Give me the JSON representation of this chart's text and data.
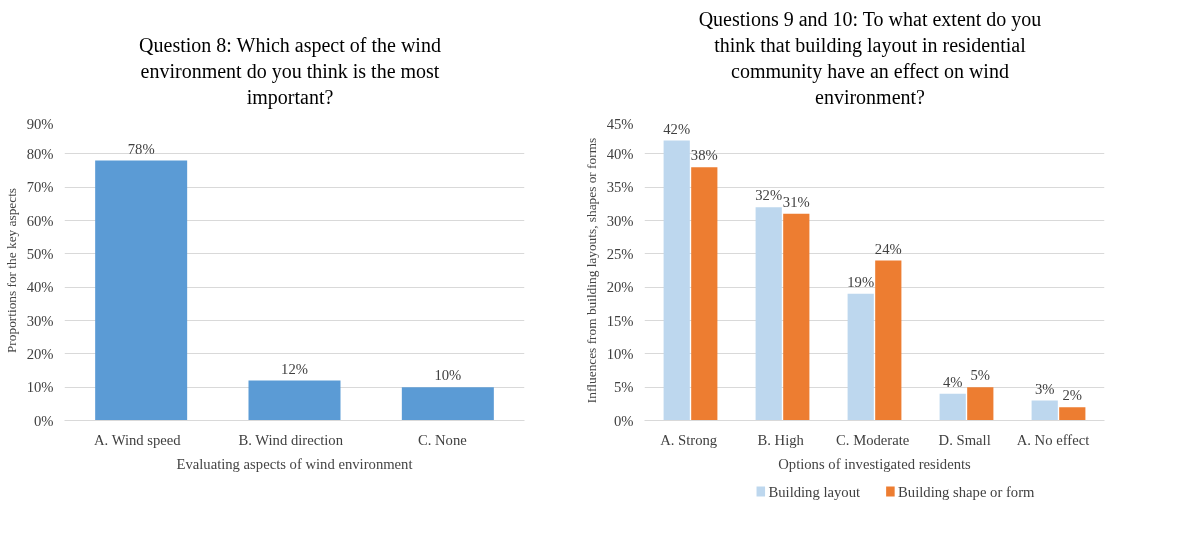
{
  "chart_data": [
    {
      "type": "bar",
      "title": "Question 8: Which aspect of the wind environment do you think is the most important?",
      "xlabel": "Evaluating aspects of wind environment",
      "ylabel": "Proportions for the key aspects",
      "categories": [
        "A.   Wind speed",
        "B.   Wind direction",
        "C.    None"
      ],
      "series": [
        {
          "color": "#5b9bd5",
          "values": [
            78,
            12,
            10
          ],
          "value_labels": [
            "78%",
            "12%",
            "10%"
          ]
        }
      ],
      "ylim": [
        0,
        90
      ],
      "yticks": [
        {
          "value": 0,
          "label": "0%"
        },
        {
          "value": 10,
          "label": "10%"
        },
        {
          "value": 20,
          "label": "20%"
        },
        {
          "value": 30,
          "label": "30%"
        },
        {
          "value": 40,
          "label": "40%"
        },
        {
          "value": 50,
          "label": "50%"
        },
        {
          "value": 60,
          "label": "60%"
        },
        {
          "value": 70,
          "label": "70%"
        },
        {
          "value": 80,
          "label": "80%"
        },
        {
          "value": 90,
          "label": "90%"
        }
      ],
      "grid": "y",
      "legend": false
    },
    {
      "type": "bar",
      "title": "Questions 9 and 10: To what extent do you think that building  layout in residential community have an effect on wind environment?",
      "xlabel": "Options of investigated residents",
      "ylabel": "Influences from building layouts, shapes or forms",
      "categories": [
        "A.  Strong",
        "B.  High",
        "C.  Moderate",
        "D.  Small",
        "A.    No effect"
      ],
      "series": [
        {
          "name": "Building layout",
          "color": "#bdd7ee",
          "values": [
            42,
            32,
            19,
            4,
            3
          ],
          "value_labels": [
            "42%",
            "32%",
            "19%",
            "4%",
            "3%"
          ]
        },
        {
          "name": "Building shape or form",
          "color": "#ed7d31",
          "values": [
            38,
            31,
            24,
            5,
            2
          ],
          "value_labels": [
            "38%",
            "31%",
            "24%",
            "5%",
            "2%"
          ]
        }
      ],
      "ylim": [
        0,
        45
      ],
      "yticks": [
        {
          "value": 0,
          "label": "0%"
        },
        {
          "value": 5,
          "label": "5%"
        },
        {
          "value": 10,
          "label": "10%"
        },
        {
          "value": 15,
          "label": "15%"
        },
        {
          "value": 20,
          "label": "20%"
        },
        {
          "value": 25,
          "label": "25%"
        },
        {
          "value": 30,
          "label": "30%"
        },
        {
          "value": 35,
          "label": "35%"
        },
        {
          "value": 40,
          "label": "40%"
        },
        {
          "value": 45,
          "label": "45%"
        }
      ],
      "grid": "y",
      "legend": "bottom"
    }
  ]
}
